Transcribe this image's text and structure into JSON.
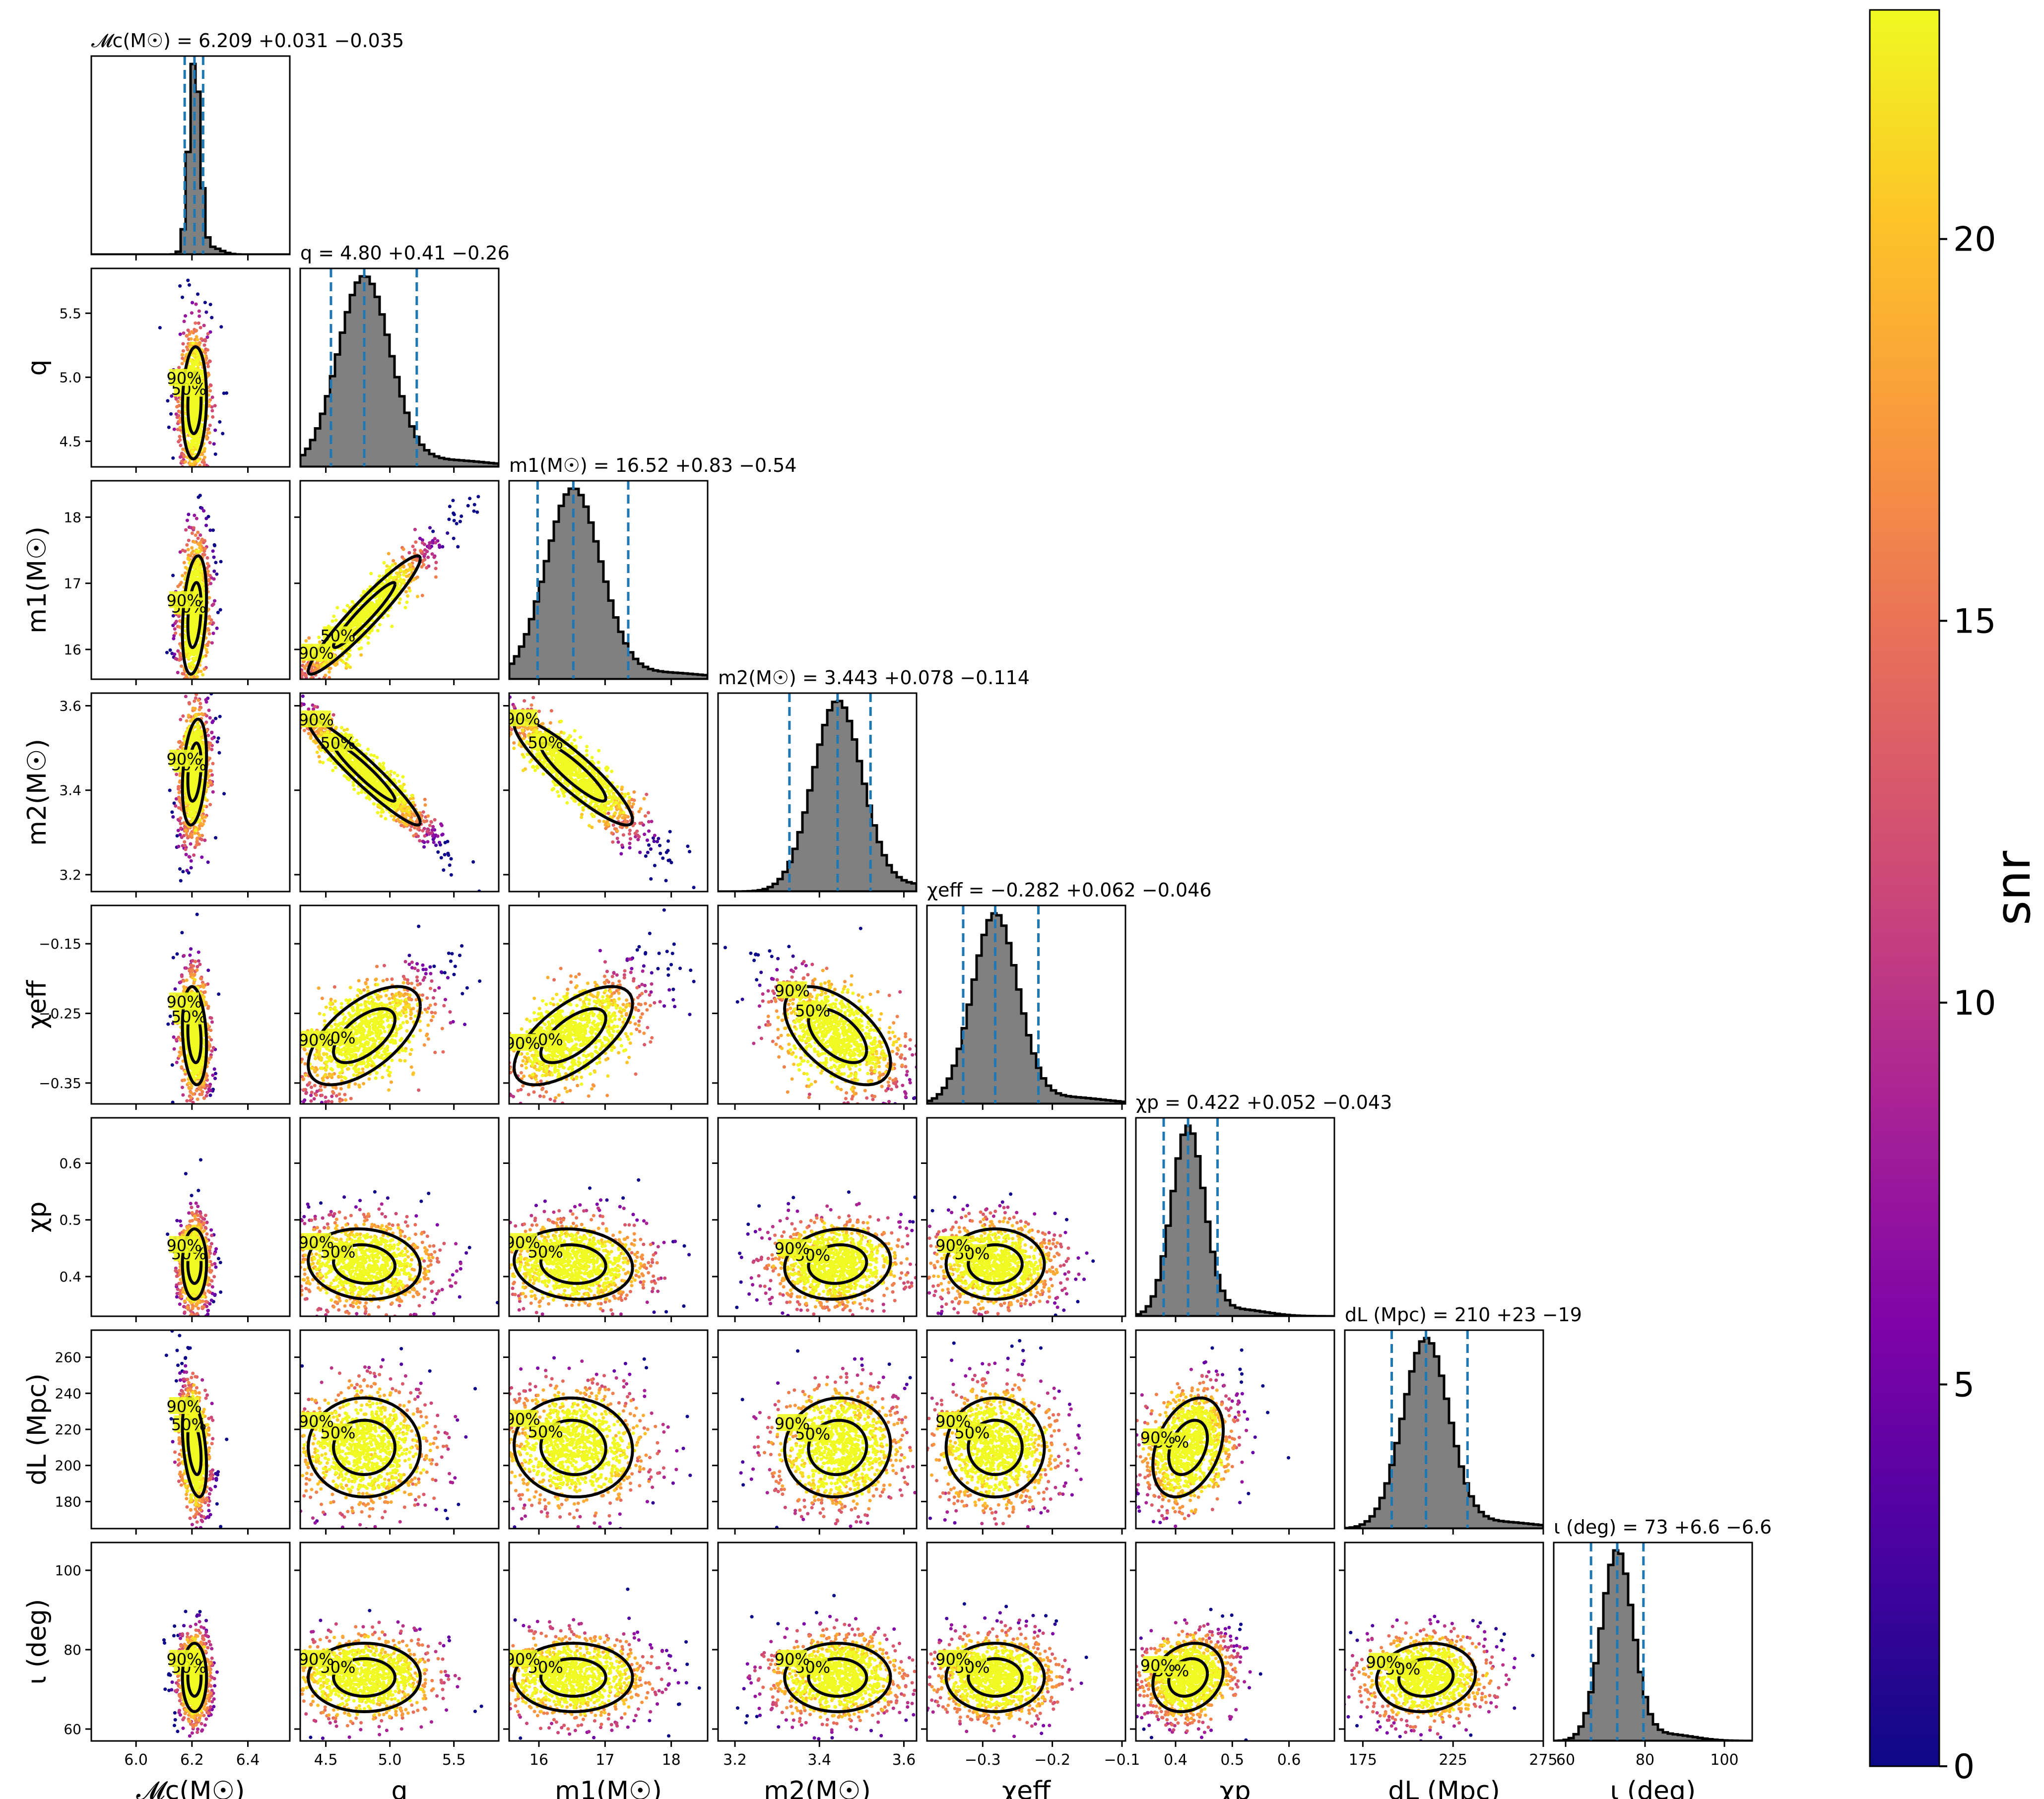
{
  "figure_title": "",
  "chart_data": {
    "type": "scatter",
    "subtype": "corner-plot",
    "parameters": [
      {
        "id": "mc",
        "axis_label": "𝓜c(M☉)",
        "title": "𝓜c(M☉) = 6.209 +0.031 −0.035",
        "median": 6.209,
        "err_plus": 0.031,
        "err_minus": 0.035,
        "range": [
          5.84,
          6.55
        ],
        "ticks": [
          6.0,
          6.2,
          6.4
        ],
        "tick_labels": [
          "6.0",
          "6.2",
          "6.4"
        ]
      },
      {
        "id": "q",
        "axis_label": "q",
        "title": "q = 4.80 +0.41 −0.26",
        "median": 4.8,
        "err_plus": 0.41,
        "err_minus": 0.26,
        "range": [
          4.3,
          5.85
        ],
        "ticks": [
          4.5,
          5.0,
          5.5
        ],
        "tick_labels": [
          "4.5",
          "5.0",
          "5.5"
        ]
      },
      {
        "id": "m1",
        "axis_label": "m1(M☉)",
        "title": "m1(M☉) = 16.52 +0.83 −0.54",
        "median": 16.52,
        "err_plus": 0.83,
        "err_minus": 0.54,
        "range": [
          15.55,
          18.55
        ],
        "ticks": [
          16,
          17,
          18
        ],
        "tick_labels": [
          "16",
          "17",
          "18"
        ]
      },
      {
        "id": "m2",
        "axis_label": "m2(M☉)",
        "title": "m2(M☉) = 3.443 +0.078 −0.114",
        "median": 3.443,
        "err_plus": 0.078,
        "err_minus": 0.114,
        "range": [
          3.16,
          3.63
        ],
        "ticks": [
          3.2,
          3.4,
          3.6
        ],
        "tick_labels": [
          "3.2",
          "3.4",
          "3.6"
        ]
      },
      {
        "id": "chieff",
        "axis_label": "χeff",
        "title": "χeff = −0.282 +0.062 −0.046",
        "median": -0.282,
        "err_plus": 0.062,
        "err_minus": 0.046,
        "range": [
          -0.38,
          -0.095
        ],
        "ticks": [
          -0.3,
          -0.2,
          -0.1
        ],
        "tick_labels": [
          "−0.3",
          "−0.2",
          "−0.1"
        ],
        "y_ticks": [
          -0.35,
          -0.25,
          -0.15
        ],
        "y_tick_labels": [
          "−0.35",
          "−0.25",
          "−0.15"
        ]
      },
      {
        "id": "chip",
        "axis_label": "χp",
        "title": "χp = 0.422 +0.052 −0.043",
        "median": 0.422,
        "err_plus": 0.052,
        "err_minus": 0.043,
        "range": [
          0.33,
          0.68
        ],
        "ticks": [
          0.4,
          0.5,
          0.6
        ],
        "tick_labels": [
          "0.4",
          "0.5",
          "0.6"
        ]
      },
      {
        "id": "dl",
        "axis_label": "dL (Mpc)",
        "title": "dL (Mpc) = 210 +23 −19",
        "median": 210,
        "err_plus": 23,
        "err_minus": 19,
        "range": [
          165,
          275
        ],
        "ticks": [
          175,
          225,
          275
        ],
        "tick_labels": [
          "175",
          "225",
          "275"
        ],
        "y_ticks": [
          180,
          200,
          220,
          240,
          260
        ],
        "y_tick_labels": [
          "180",
          "200",
          "220",
          "240",
          "260"
        ]
      },
      {
        "id": "iota",
        "axis_label": "ι (deg)",
        "title": "ι (deg) = 73 +6.6 −6.6",
        "median": 73,
        "err_plus": 6.6,
        "err_minus": 6.6,
        "range": [
          57,
          107
        ],
        "ticks": [
          60,
          80,
          100
        ],
        "tick_labels": [
          "60",
          "80",
          "100"
        ]
      }
    ],
    "correlations": [
      [
        1,
        0,
        0,
        0,
        0,
        0,
        0,
        0
      ],
      [
        0.1,
        1,
        0,
        0,
        0,
        0,
        0,
        0
      ],
      [
        0.3,
        0.95,
        1,
        0,
        0,
        0,
        0,
        0
      ],
      [
        0.3,
        -0.95,
        -0.9,
        1,
        0,
        0,
        0,
        0
      ],
      [
        -0.2,
        0.6,
        0.65,
        -0.55,
        1,
        0,
        0,
        0
      ],
      [
        0,
        -0.1,
        -0.1,
        0.1,
        0,
        1,
        0,
        0
      ],
      [
        -0.4,
        0,
        -0.05,
        0.05,
        0,
        0.35,
        1,
        0
      ],
      [
        0,
        0,
        0,
        0,
        0,
        0.2,
        0.1,
        1
      ]
    ],
    "contour_levels": [
      "50%",
      "90%"
    ],
    "colorbar": {
      "label": "snr",
      "range": [
        0,
        23
      ],
      "ticks": [
        0,
        5,
        10,
        15,
        20
      ],
      "tick_labels": [
        "0",
        "5",
        "10",
        "15",
        "20"
      ],
      "colormap": "plasma"
    },
    "colors": {
      "histogram_fill": "#808080",
      "quantile_line": "#1f77b4",
      "contour": "#000000"
    },
    "grid": false,
    "legend": "none"
  }
}
